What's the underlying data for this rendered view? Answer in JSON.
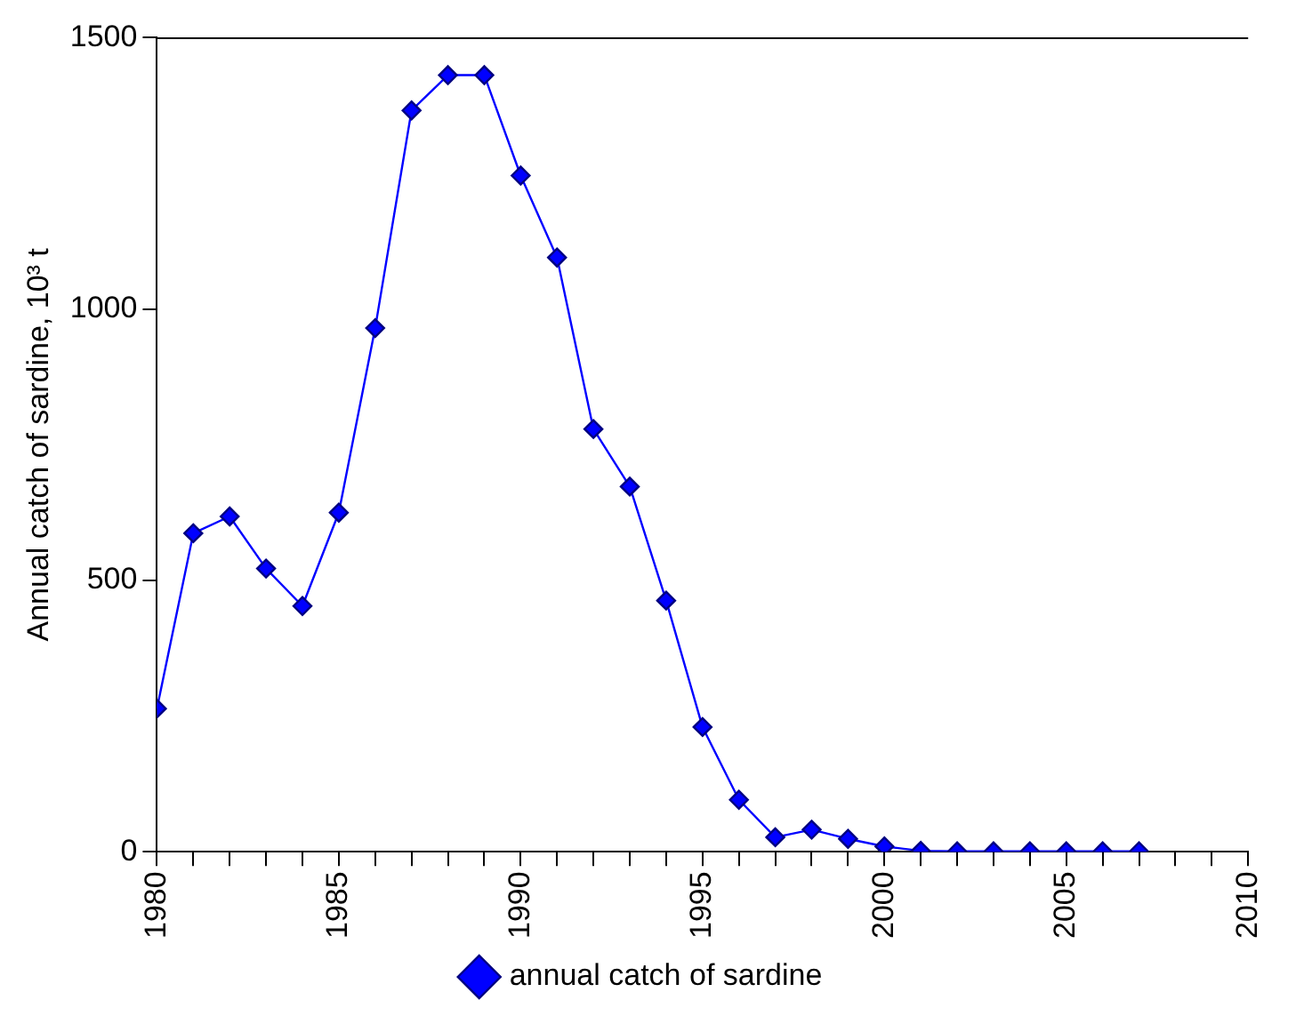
{
  "chart_data": {
    "type": "line",
    "ylabel": "Annual catch of sardine, 10³ t",
    "x": [
      1980,
      1981,
      1982,
      1983,
      1984,
      1985,
      1986,
      1987,
      1988,
      1989,
      1990,
      1991,
      1992,
      1993,
      1994,
      1995,
      1996,
      1997,
      1998,
      1999,
      2000,
      2001,
      2002,
      2003,
      2004,
      2005,
      2006,
      2007
    ],
    "series": [
      {
        "name": "annual catch of sardine",
        "color": "#0000ff",
        "values": [
          264,
          587,
          618,
          522,
          453,
          625,
          965,
          1366,
          1431,
          1431,
          1246,
          1095,
          779,
          673,
          463,
          230,
          96,
          27,
          41,
          24,
          10,
          2,
          1,
          1,
          1,
          1,
          1,
          1
        ]
      }
    ],
    "xlim": [
      1980,
      2010
    ],
    "xticks": [
      1980,
      {
        "value": 1981,
        "label": null
      },
      {
        "value": 1982,
        "label": null
      },
      {
        "value": 1983,
        "label": null
      },
      {
        "value": 1984,
        "label": null
      },
      1985,
      {
        "value": 1986,
        "label": null
      },
      {
        "value": 1987,
        "label": null
      },
      {
        "value": 1988,
        "label": null
      },
      {
        "value": 1989,
        "label": null
      },
      1990,
      {
        "value": 1991,
        "label": null
      },
      {
        "value": 1992,
        "label": null
      },
      {
        "value": 1993,
        "label": null
      },
      {
        "value": 1994,
        "label": null
      },
      1995,
      {
        "value": 1996,
        "label": null
      },
      {
        "value": 1997,
        "label": null
      },
      {
        "value": 1998,
        "label": null
      },
      {
        "value": 1999,
        "label": null
      },
      2000,
      {
        "value": 2001,
        "label": null
      },
      {
        "value": 2002,
        "label": null
      },
      {
        "value": 2003,
        "label": null
      },
      {
        "value": 2004,
        "label": null
      },
      2005,
      {
        "value": 2006,
        "label": null
      },
      {
        "value": 2007,
        "label": null
      },
      {
        "value": 2008,
        "label": null
      },
      {
        "value": 2009,
        "label": null
      },
      2010
    ],
    "ylim": [
      0,
      1500
    ],
    "yticks": [
      0,
      500,
      1000,
      1500
    ],
    "grid": false,
    "legend": "bottom",
    "marker": "diamond",
    "line_style": "solid"
  }
}
